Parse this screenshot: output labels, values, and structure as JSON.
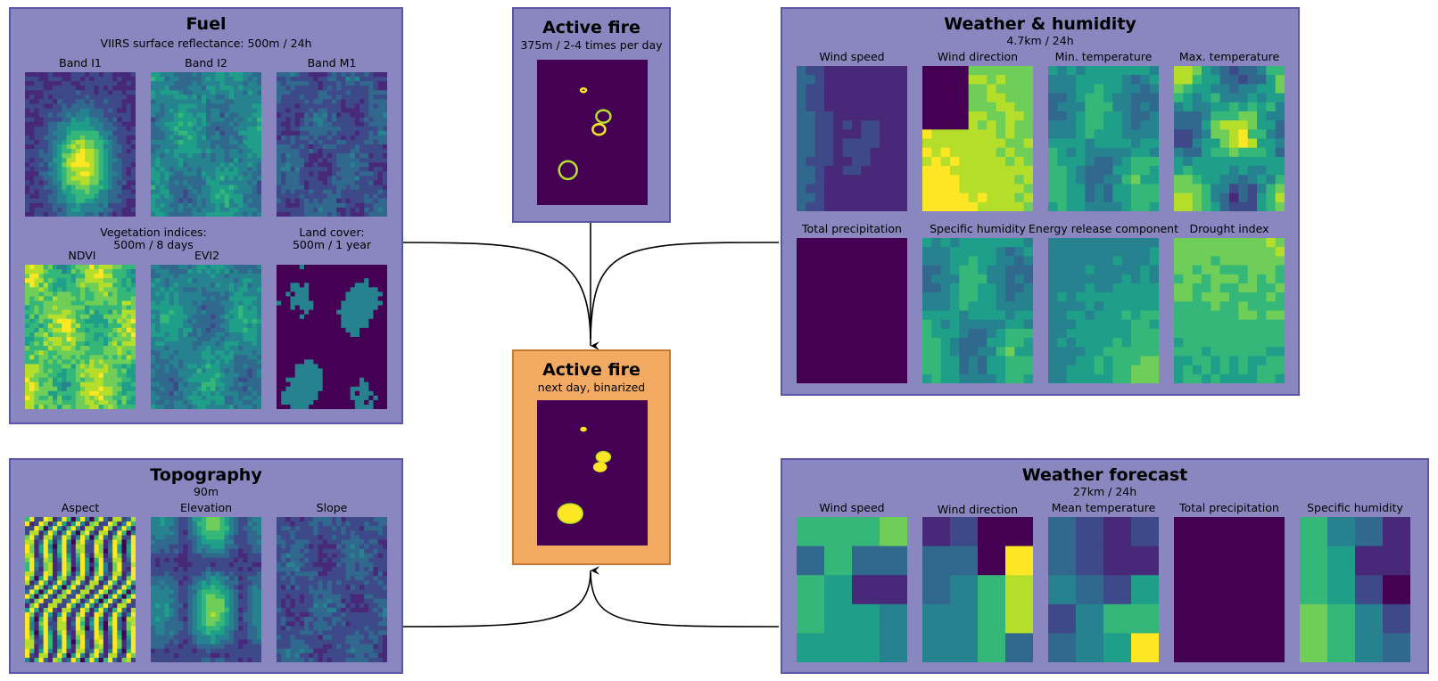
{
  "fuel": {
    "title": "Fuel",
    "subtitle": "VIIRS surface reflectance: 500m / 24h",
    "bands": [
      "Band I1",
      "Band I2",
      "Band M1"
    ],
    "veg_note": "Vegetation indices:\n500m / 8 days",
    "indices": [
      "NDVI",
      "EVI2"
    ],
    "landcover_note": "Land cover:\n500m / 1 year"
  },
  "active_fire": {
    "title": "Active fire",
    "subtitle": "375m / 2-4 times per day"
  },
  "target": {
    "title": "Active fire",
    "subtitle": "next day, binarized"
  },
  "weather": {
    "title": "Weather & humidity",
    "subtitle": "4.7km / 24h",
    "labels": [
      "Wind speed",
      "Wind direction",
      "Min. temperature",
      "Max. temperature",
      "Total precipitation",
      "Specific humidity",
      "Energy release component",
      "Drought index"
    ]
  },
  "topo": {
    "title": "Topography",
    "subtitle": "90m",
    "labels": [
      "Aspect",
      "Elevation",
      "Slope"
    ]
  },
  "forecast": {
    "title": "Weather forecast",
    "subtitle": "27km / 24h",
    "labels": [
      "Wind speed",
      "Wind direction",
      "Mean temperature",
      "Total precipitation",
      "Specific humidity"
    ]
  },
  "colors": {
    "viridis": [
      "#440154",
      "#482878",
      "#3e4989",
      "#31688e",
      "#26828e",
      "#1f9e89",
      "#35b779",
      "#6ece58",
      "#b5de2b",
      "#fde725"
    ],
    "panel": "#8a86bf",
    "panel_border": "#5b56a8",
    "target_panel": "#f2aa63"
  }
}
